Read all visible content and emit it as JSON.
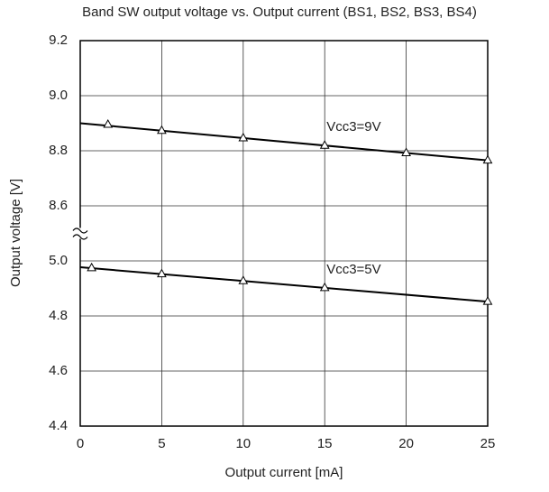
{
  "chart_data": {
    "type": "line",
    "title": "Band SW output voltage vs. Output current (BS1, BS2, BS3, BS4)",
    "xlabel": "Output current [mA]",
    "ylabel": "Output voltage [V]",
    "xlim": [
      0,
      25
    ],
    "xticks": [
      0,
      5,
      10,
      15,
      20,
      25
    ],
    "ylim": [
      4.4,
      9.2
    ],
    "ybreak": [
      5.0,
      8.6
    ],
    "yticks": [
      4.4,
      4.6,
      4.8,
      {
        "value": 5,
        "label": "5.0"
      },
      8.6,
      8.8,
      {
        "value": 9,
        "label": "9.0"
      },
      9.2
    ],
    "grid": true,
    "series": [
      {
        "name": "Vcc3=9V",
        "color": "#000000",
        "x": [
          1.7,
          5,
          10,
          15,
          20,
          25
        ],
        "values": [
          8.895,
          8.873,
          8.846,
          8.819,
          8.792,
          8.765
        ],
        "line_x": [
          0,
          25
        ],
        "line_values": [
          8.9,
          8.765
        ]
      },
      {
        "name": "Vcc3=5V",
        "color": "#000000",
        "x": [
          0.7,
          5,
          10,
          15,
          25
        ],
        "values": [
          4.974,
          4.952,
          4.927,
          4.902,
          4.852
        ],
        "line_x": [
          0,
          25
        ],
        "line_values": [
          4.977,
          4.852
        ]
      }
    ]
  }
}
